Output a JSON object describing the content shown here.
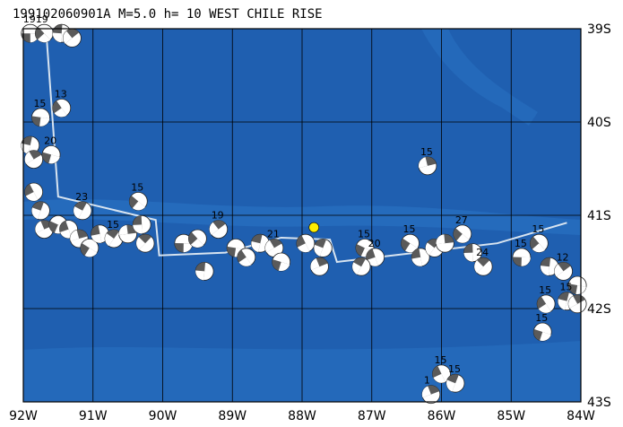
{
  "title": "199102060901A M=5.0 h= 10 WEST CHILE RISE",
  "colors": {
    "ocean": "#1f5fb0",
    "ocean_light": "#2a73c4",
    "ridge": "#3a86cf",
    "grid": "#000000",
    "plate_boundary": "#d8e4f0",
    "highlight_event": "#ffee00",
    "beachball_dark": "#5a5a5a",
    "beachball_light": "#ffffff"
  },
  "lon_labels": [
    "92W",
    "91W",
    "90W",
    "89W",
    "88W",
    "87W",
    "86W",
    "85W",
    "84W"
  ],
  "lat_labels": [
    "39S",
    "40S",
    "41S",
    "42S",
    "43S"
  ],
  "extent": {
    "lon_min": -92,
    "lon_max": -84,
    "lat_min": -43,
    "lat_max": -39
  },
  "highlight": {
    "lon": -87.83,
    "lat": -41.13
  },
  "plate_boundary": [
    [
      -91.67,
      -39.05
    ],
    [
      -91.5,
      -40.8
    ],
    [
      -90.1,
      -41.05
    ],
    [
      -90.05,
      -41.43
    ],
    [
      -89.1,
      -41.4
    ],
    [
      -88.3,
      -41.24
    ],
    [
      -87.6,
      -41.26
    ],
    [
      -87.5,
      -41.5
    ],
    [
      -85.2,
      -41.3
    ],
    [
      -84.2,
      -41.08
    ]
  ],
  "events": [
    {
      "lon": -91.9,
      "lat": -39.05,
      "label": "1919"
    },
    {
      "lon": -91.7,
      "lat": -39.05,
      "label": ""
    },
    {
      "lon": -91.45,
      "lat": -39.05,
      "label": ""
    },
    {
      "lon": -91.3,
      "lat": -39.1,
      "label": ""
    },
    {
      "lon": -91.75,
      "lat": -39.95,
      "label": "15"
    },
    {
      "lon": -91.45,
      "lat": -39.85,
      "label": "13"
    },
    {
      "lon": -91.9,
      "lat": -40.25,
      "label": ""
    },
    {
      "lon": -91.85,
      "lat": -40.4,
      "label": ""
    },
    {
      "lon": -91.6,
      "lat": -40.35,
      "label": "20"
    },
    {
      "lon": -91.85,
      "lat": -40.75,
      "label": ""
    },
    {
      "lon": -91.75,
      "lat": -40.95,
      "label": ""
    },
    {
      "lon": -91.7,
      "lat": -41.15,
      "label": ""
    },
    {
      "lon": -91.5,
      "lat": -41.1,
      "label": ""
    },
    {
      "lon": -91.35,
      "lat": -41.15,
      "label": ""
    },
    {
      "lon": -91.15,
      "lat": -40.95,
      "label": "23"
    },
    {
      "lon": -91.2,
      "lat": -41.25,
      "label": ""
    },
    {
      "lon": -91.05,
      "lat": -41.35,
      "label": ""
    },
    {
      "lon": -90.9,
      "lat": -41.2,
      "label": ""
    },
    {
      "lon": -90.7,
      "lat": -41.25,
      "label": "15"
    },
    {
      "lon": -90.5,
      "lat": -41.2,
      "label": ""
    },
    {
      "lon": -90.35,
      "lat": -40.85,
      "label": "15"
    },
    {
      "lon": -90.3,
      "lat": -41.1,
      "label": ""
    },
    {
      "lon": -90.25,
      "lat": -41.3,
      "label": ""
    },
    {
      "lon": -89.7,
      "lat": -41.3,
      "label": ""
    },
    {
      "lon": -89.5,
      "lat": -41.25,
      "label": ""
    },
    {
      "lon": -89.4,
      "lat": -41.6,
      "label": ""
    },
    {
      "lon": -89.2,
      "lat": -41.15,
      "label": "19"
    },
    {
      "lon": -88.95,
      "lat": -41.35,
      "label": ""
    },
    {
      "lon": -88.8,
      "lat": -41.45,
      "label": ""
    },
    {
      "lon": -88.6,
      "lat": -41.3,
      "label": ""
    },
    {
      "lon": -88.4,
      "lat": -41.35,
      "label": "21"
    },
    {
      "lon": -88.3,
      "lat": -41.5,
      "label": ""
    },
    {
      "lon": -87.95,
      "lat": -41.3,
      "label": ""
    },
    {
      "lon": -87.7,
      "lat": -41.35,
      "label": ""
    },
    {
      "lon": -87.75,
      "lat": -41.55,
      "label": ""
    },
    {
      "lon": -87.1,
      "lat": -41.35,
      "label": "15"
    },
    {
      "lon": -86.95,
      "lat": -41.45,
      "label": "20"
    },
    {
      "lon": -87.15,
      "lat": -41.55,
      "label": ""
    },
    {
      "lon": -86.2,
      "lat": -40.47,
      "label": "15"
    },
    {
      "lon": -86.45,
      "lat": -41.3,
      "label": "15"
    },
    {
      "lon": -86.3,
      "lat": -41.45,
      "label": ""
    },
    {
      "lon": -86.1,
      "lat": -41.35,
      "label": ""
    },
    {
      "lon": -85.95,
      "lat": -41.3,
      "label": ""
    },
    {
      "lon": -85.7,
      "lat": -41.2,
      "label": "27"
    },
    {
      "lon": -85.55,
      "lat": -41.4,
      "label": ""
    },
    {
      "lon": -85.4,
      "lat": -41.55,
      "label": "24"
    },
    {
      "lon": -84.85,
      "lat": -41.45,
      "label": "15"
    },
    {
      "lon": -84.6,
      "lat": -41.3,
      "label": "15"
    },
    {
      "lon": -84.45,
      "lat": -41.55,
      "label": ""
    },
    {
      "lon": -84.25,
      "lat": -41.6,
      "label": "12"
    },
    {
      "lon": -84.05,
      "lat": -41.75,
      "label": ""
    },
    {
      "lon": -84.5,
      "lat": -41.95,
      "label": "15"
    },
    {
      "lon": -84.2,
      "lat": -41.92,
      "label": "15"
    },
    {
      "lon": -84.05,
      "lat": -41.95,
      "label": ""
    },
    {
      "lon": -84.55,
      "lat": -42.25,
      "label": "15"
    },
    {
      "lon": -86.0,
      "lat": -42.7,
      "label": "15"
    },
    {
      "lon": -85.8,
      "lat": -42.8,
      "label": "15"
    },
    {
      "lon": -86.15,
      "lat": -42.92,
      "label": "1"
    }
  ]
}
